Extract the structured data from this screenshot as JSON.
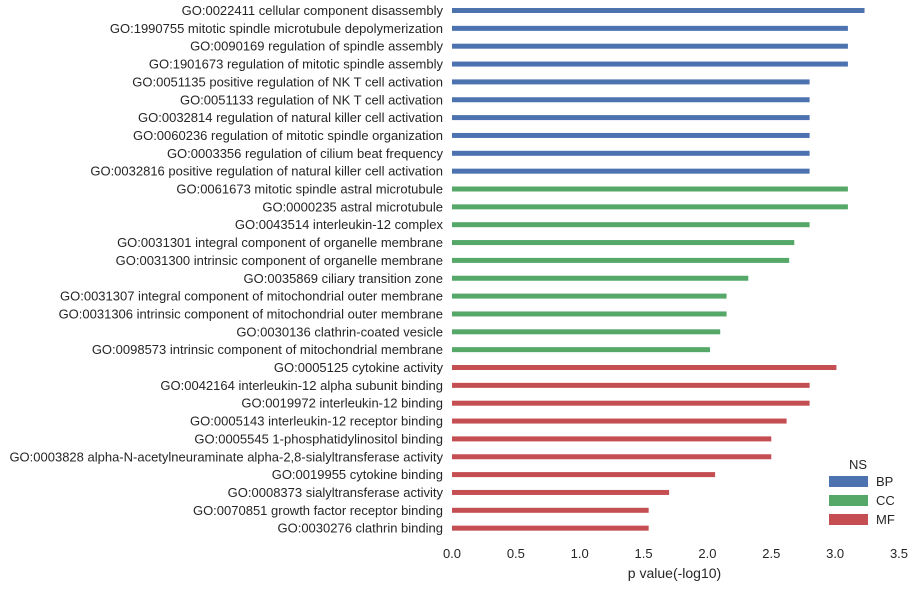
{
  "chart_data": {
    "type": "bar",
    "orientation": "horizontal",
    "title": "",
    "xlabel": "p value(-log10)",
    "ylabel": "",
    "xlim": [
      0,
      3.5
    ],
    "xticks": [
      "0.0",
      "0.5",
      "1.0",
      "1.5",
      "2.0",
      "2.5",
      "3.0",
      "3.5"
    ],
    "grid": false,
    "legend": {
      "title": "NS",
      "placement": "bottom-right",
      "entries": [
        {
          "name": "BP",
          "color": "#4c72b0"
        },
        {
          "name": "CC",
          "color": "#55a868"
        },
        {
          "name": "MF",
          "color": "#c44e52"
        }
      ]
    },
    "bars": [
      {
        "label": "GO:0022411 cellular component disassembly",
        "value": 3.23,
        "ns": "BP"
      },
      {
        "label": "GO:1990755 mitotic spindle microtubule depolymerization",
        "value": 3.1,
        "ns": "BP"
      },
      {
        "label": "GO:0090169 regulation of spindle assembly",
        "value": 3.1,
        "ns": "BP"
      },
      {
        "label": "GO:1901673 regulation of mitotic spindle assembly",
        "value": 3.1,
        "ns": "BP"
      },
      {
        "label": "GO:0051135 positive regulation of NK T cell activation",
        "value": 2.8,
        "ns": "BP"
      },
      {
        "label": "GO:0051133 regulation of NK T cell activation",
        "value": 2.8,
        "ns": "BP"
      },
      {
        "label": "GO:0032814 regulation of natural killer cell activation",
        "value": 2.8,
        "ns": "BP"
      },
      {
        "label": "GO:0060236 regulation of mitotic spindle organization",
        "value": 2.8,
        "ns": "BP"
      },
      {
        "label": "GO:0003356 regulation of cilium beat frequency",
        "value": 2.8,
        "ns": "BP"
      },
      {
        "label": "GO:0032816 positive regulation of natural killer cell activation",
        "value": 2.8,
        "ns": "BP"
      },
      {
        "label": "GO:0061673 mitotic spindle astral microtubule",
        "value": 3.1,
        "ns": "CC"
      },
      {
        "label": "GO:0000235 astral microtubule",
        "value": 3.1,
        "ns": "CC"
      },
      {
        "label": "GO:0043514 interleukin-12 complex",
        "value": 2.8,
        "ns": "CC"
      },
      {
        "label": "GO:0031301 integral component of organelle membrane",
        "value": 2.68,
        "ns": "CC"
      },
      {
        "label": "GO:0031300 intrinsic component of organelle membrane",
        "value": 2.64,
        "ns": "CC"
      },
      {
        "label": "GO:0035869 ciliary transition zone",
        "value": 2.32,
        "ns": "CC"
      },
      {
        "label": "GO:0031307 integral component of mitochondrial outer membrane",
        "value": 2.15,
        "ns": "CC"
      },
      {
        "label": "GO:0031306 intrinsic component of mitochondrial outer membrane",
        "value": 2.15,
        "ns": "CC"
      },
      {
        "label": "GO:0030136 clathrin-coated vesicle",
        "value": 2.1,
        "ns": "CC"
      },
      {
        "label": "GO:0098573 intrinsic component of mitochondrial membrane",
        "value": 2.02,
        "ns": "CC"
      },
      {
        "label": "GO:0005125 cytokine activity",
        "value": 3.01,
        "ns": "MF"
      },
      {
        "label": "GO:0042164 interleukin-12 alpha subunit binding",
        "value": 2.8,
        "ns": "MF"
      },
      {
        "label": "GO:0019972 interleukin-12 binding",
        "value": 2.8,
        "ns": "MF"
      },
      {
        "label": "GO:0005143 interleukin-12 receptor binding",
        "value": 2.62,
        "ns": "MF"
      },
      {
        "label": "GO:0005545 1-phosphatidylinositol binding",
        "value": 2.5,
        "ns": "MF"
      },
      {
        "label": "GO:0003828 alpha-N-acetylneuraminate alpha-2,8-sialyltransferase activity",
        "value": 2.5,
        "ns": "MF"
      },
      {
        "label": "GO:0019955 cytokine binding",
        "value": 2.06,
        "ns": "MF"
      },
      {
        "label": "GO:0008373 sialyltransferase activity",
        "value": 1.7,
        "ns": "MF"
      },
      {
        "label": "GO:0070851 growth factor receptor binding",
        "value": 1.54,
        "ns": "MF"
      },
      {
        "label": "GO:0030276 clathrin binding",
        "value": 1.54,
        "ns": "MF"
      }
    ]
  }
}
